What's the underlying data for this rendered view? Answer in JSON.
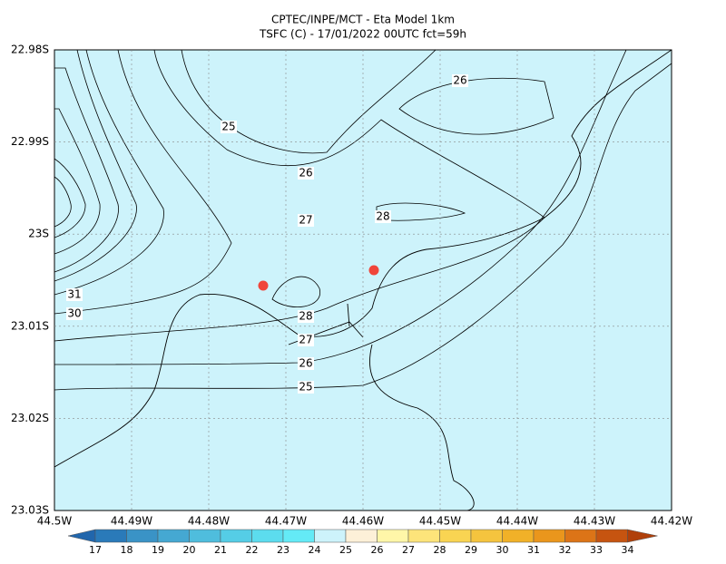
{
  "title": [
    "CPTEC/INPE/MCT -  Eta Model 1km",
    "TSFC (C) - 17/01/2022 00UTC fct=59h"
  ],
  "x_ticks": [
    "44.5W",
    "44.49W",
    "44.48W",
    "44.47W",
    "44.46W",
    "44.45W",
    "44.44W",
    "44.43W",
    "44.42W"
  ],
  "y_ticks": [
    "22.98S",
    "22.99S",
    "23S",
    "23.01S",
    "23.02S",
    "23.03S"
  ],
  "contour_labels": [
    "26",
    "25",
    "26",
    "27",
    "28",
    "31",
    "30",
    "28",
    "27",
    "26",
    "25"
  ],
  "colorbar": {
    "levels": [
      "17",
      "18",
      "19",
      "20",
      "21",
      "22",
      "23",
      "24",
      "25",
      "26",
      "27",
      "28",
      "29",
      "30",
      "31",
      "32",
      "33",
      "34"
    ],
    "colors": [
      "#2166ac",
      "#2a7ab9",
      "#3a93c6",
      "#45a8d2",
      "#4fbddd",
      "#55cde6",
      "#5cdcee",
      "#64eaf6",
      "#cdf3fb",
      "#fdf0d8",
      "#fff6a8",
      "#fde47a",
      "#f9d452",
      "#f5c43e",
      "#f1b128",
      "#ea961c",
      "#dc7417",
      "#c65410",
      "#b0400a"
    ]
  }
}
